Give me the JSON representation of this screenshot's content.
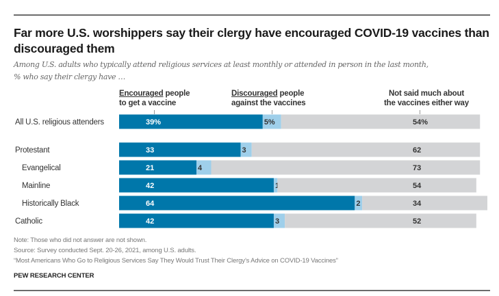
{
  "title": "Far more U.S. worshippers say their clergy have encouraged COVID-19 vaccines than discouraged them",
  "subtitle_line1": "Among U.S. adults who typically attend religious services at least monthly or attended in person in the last month,",
  "subtitle_line2": "% who say their clergy have …",
  "headers": {
    "encouraged_u": "Encouraged",
    "encouraged_rest1": " people",
    "encouraged_line2": "to get a vaccine",
    "discouraged_u": "Discouraged",
    "discouraged_rest1": " people",
    "discouraged_line2": "against the vaccines",
    "neither_line1": "Not said much about",
    "neither_line2": "the vaccines either way"
  },
  "colors": {
    "encouraged": "#0077aa",
    "discouraged": "#9fcfea",
    "neither": "#d3d4d6"
  },
  "chart_data": {
    "type": "bar",
    "orientation": "horizontal",
    "stacked": true,
    "title": "Far more U.S. worshippers say their clergy have encouraged COVID-19 vaccines than discouraged them",
    "categories": [
      "All U.S. religious attenders",
      "Protestant",
      "Evangelical",
      "Mainline",
      "Historically Black",
      "Catholic"
    ],
    "indent": [
      false,
      false,
      true,
      true,
      true,
      false
    ],
    "series": [
      {
        "name": "Encouraged people to get a vaccine",
        "values": [
          39,
          33,
          21,
          42,
          64,
          42
        ]
      },
      {
        "name": "Discouraged people against the vaccines",
        "values": [
          5,
          3,
          4,
          1,
          2,
          3
        ]
      },
      {
        "name": "Not said much about the vaccines either way",
        "values": [
          54,
          62,
          73,
          54,
          34,
          52
        ]
      }
    ],
    "value_labels": [
      [
        "39%",
        "5%",
        "54%"
      ],
      [
        "33",
        "3",
        "62"
      ],
      [
        "21",
        "4",
        "73"
      ],
      [
        "42",
        "1",
        "54"
      ],
      [
        "64",
        "2",
        "34"
      ],
      [
        "42",
        "3",
        "52"
      ]
    ],
    "xlim": [
      0,
      100
    ],
    "grid": false,
    "legend": "top (column headers)"
  },
  "notes": {
    "note": "Note: Those who did not answer are not shown.",
    "source": "Source: Survey conducted Sept. 20-26, 2021, among U.S. adults.",
    "report": "“Most Americans Who Go to Religious Services Say They Would Trust Their Clergy’s Advice on COVID-19 Vaccines”",
    "brand": "PEW RESEARCH CENTER"
  }
}
